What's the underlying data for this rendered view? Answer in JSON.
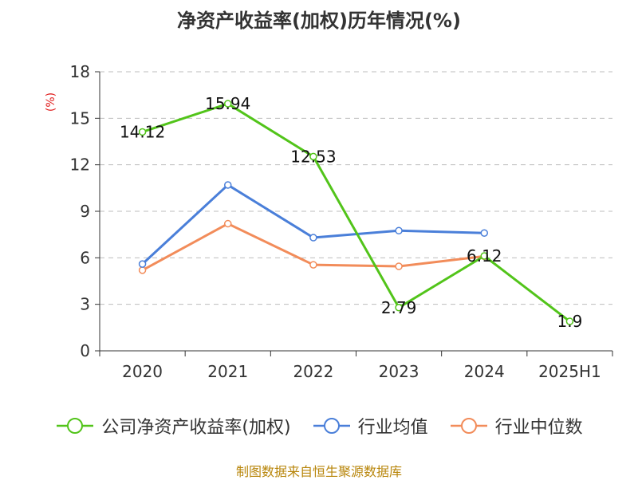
{
  "chart_data": {
    "type": "line",
    "title": "净资产收益率(加权)历年情况(%)",
    "unit_label": "(%)",
    "categories": [
      "2020",
      "2021",
      "2022",
      "2023",
      "2024",
      "2025H1"
    ],
    "yticks": [
      "0",
      "3",
      "6",
      "9",
      "12",
      "15",
      "18"
    ],
    "ylim": [
      0,
      18
    ],
    "grid": true,
    "legend_position": "bottom",
    "series": [
      {
        "name": "公司净资产收益率(加权)",
        "color": "#52c41a",
        "values": [
          14.12,
          15.94,
          12.53,
          2.79,
          6.12,
          1.9
        ],
        "labels": [
          "14.12",
          "15.94",
          "12.53",
          "2.79",
          "6.12",
          "1.9"
        ]
      },
      {
        "name": "行业均值",
        "color": "#4a7fd9",
        "values": [
          5.6,
          10.7,
          7.3,
          7.75,
          7.6,
          null
        ]
      },
      {
        "name": "行业中位数",
        "color": "#f28c5a",
        "values": [
          5.2,
          8.2,
          5.55,
          5.45,
          6.1,
          null
        ]
      }
    ]
  },
  "source_note": "制图数据来自恒生聚源数据库"
}
